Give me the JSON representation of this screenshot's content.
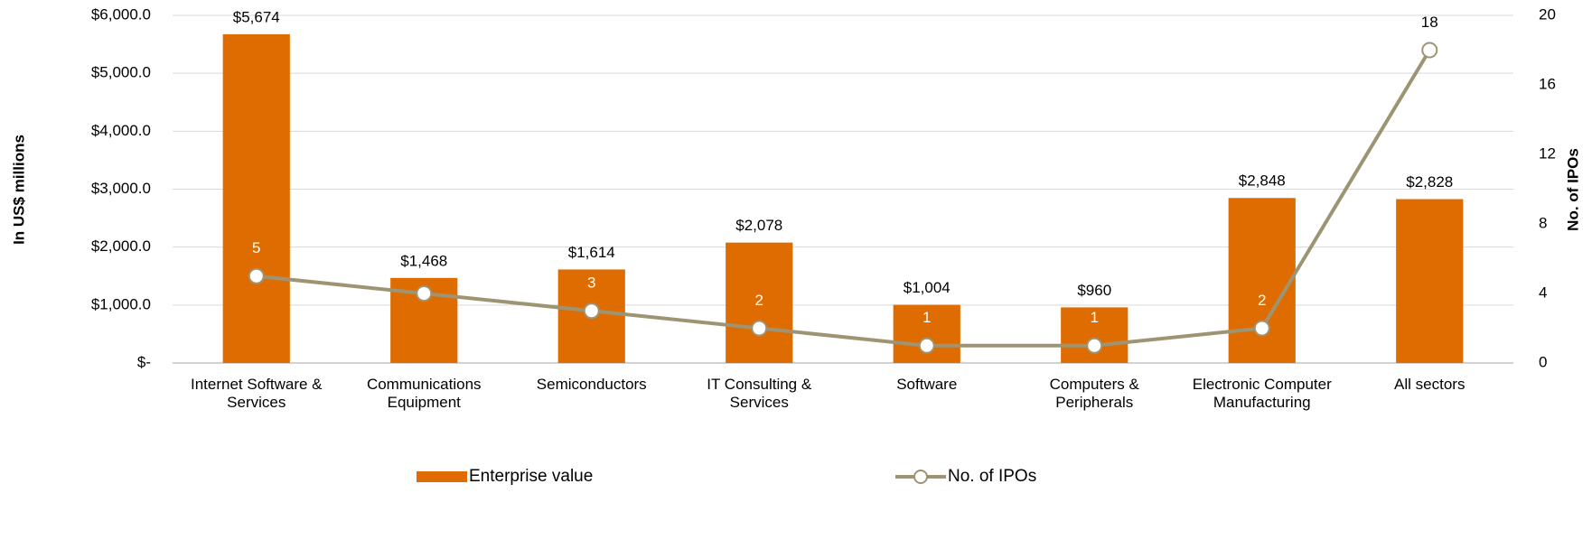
{
  "chart_data": {
    "type": "bar",
    "categories": [
      "Internet Software & Services",
      "Communications Equipment",
      "Semiconductors",
      "IT Consulting & Services",
      "Software",
      "Computers & Peripherals",
      "Electronic Computer Manufacturing",
      "All sectors"
    ],
    "series": [
      {
        "name": "Enterprise value",
        "type": "bar",
        "color": "#df6c00",
        "values": [
          5674,
          1468,
          1614,
          2078,
          1004,
          960,
          2848,
          2828
        ],
        "value_labels": [
          "$5,674",
          "$1,468",
          "$1,614",
          "$2,078",
          "$1,004",
          "$960",
          "$2,848",
          "$2,828"
        ]
      },
      {
        "name": "No. of IPOs",
        "type": "line",
        "axis": "y2",
        "color": "#9e9474",
        "values": [
          5,
          4,
          3,
          2,
          1,
          1,
          2,
          18
        ],
        "value_labels": [
          "5",
          null,
          "3",
          "2",
          "1",
          "1",
          "2",
          "18"
        ]
      }
    ],
    "y_label": "In US$ millions",
    "y2_label": "No. of IPOs",
    "ylim": [
      0,
      6000
    ],
    "yticks": [
      {
        "value": 0,
        "label": "$-"
      },
      {
        "value": 1000,
        "label": "$1,000.0"
      },
      {
        "value": 2000,
        "label": "$2,000.0"
      },
      {
        "value": 3000,
        "label": "$3,000.0"
      },
      {
        "value": 4000,
        "label": "$4,000.0"
      },
      {
        "value": 5000,
        "label": "$5,000.0"
      },
      {
        "value": 6000,
        "label": "$6,000.0"
      }
    ],
    "y2lim": [
      0,
      20
    ],
    "y2ticks": [
      0,
      4,
      8,
      12,
      16,
      20
    ],
    "grid": true,
    "legend": "bottom"
  }
}
